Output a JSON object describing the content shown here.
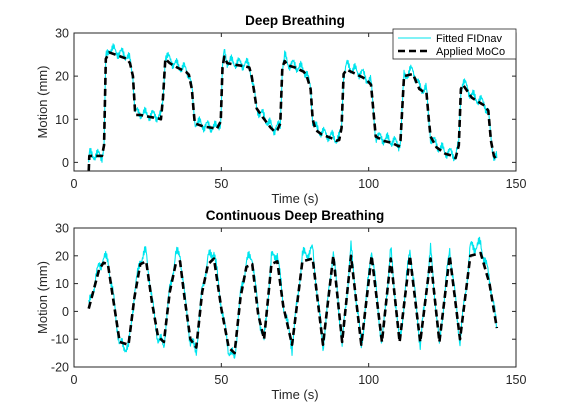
{
  "colors": {
    "fitted": "#00e5ee",
    "applied": "#000000",
    "axis": "#262626"
  },
  "chart_data": [
    {
      "type": "line",
      "title": "Deep Breathing",
      "xlabel": "Time (s)",
      "ylabel": "Motion (mm)",
      "xlim": [
        0,
        150
      ],
      "ylim": [
        -2,
        30
      ],
      "xticks": [
        0,
        50,
        100,
        150
      ],
      "yticks": [
        0,
        10,
        20,
        30
      ],
      "legend": {
        "position": "top-right",
        "entries": [
          "Fitted FIDnav",
          "Applied MoCo"
        ]
      },
      "series": [
        {
          "name": "Fitted FIDnav",
          "style": "solid",
          "noise": 1.0,
          "x": [
            5,
            5.2,
            9.5,
            10.2,
            10.8,
            12,
            14,
            16,
            18,
            19,
            20,
            20.7,
            21,
            22.5,
            24,
            26,
            28.5,
            29.5,
            30.2,
            31,
            32.5,
            35,
            38,
            39,
            40,
            40.6,
            41,
            42,
            44,
            47,
            48.5,
            49.8,
            50.4,
            51,
            52,
            55,
            58,
            59.5,
            60.3,
            61,
            62,
            64,
            66.8,
            68,
            69,
            70,
            70.7,
            71.5,
            72.5,
            75,
            78,
            79,
            80.3,
            81,
            82,
            84,
            87.8,
            89,
            90,
            90.8,
            91.5,
            92.5,
            95,
            98,
            99.5,
            100.8,
            101.6,
            102.4,
            105,
            108,
            109.4,
            110.2,
            110.8,
            112,
            115,
            117.2,
            118.4,
            119.6,
            120.4,
            121,
            123,
            126,
            128.5,
            129.5,
            130.6,
            131.3,
            132,
            135,
            138.5,
            139.3,
            140,
            140.6,
            141.5,
            142.5,
            143.5
          ],
          "y": [
            0,
            1.8,
            1.6,
            4,
            24,
            26.5,
            25.8,
            25.3,
            24.8,
            23.5,
            20,
            12,
            11.5,
            11.5,
            11.2,
            11,
            10.8,
            10.5,
            15,
            24.8,
            23.8,
            22.5,
            21.5,
            20.8,
            17,
            12,
            9.5,
            9.2,
            8.6,
            8.2,
            8,
            9.5,
            22,
            25.5,
            23.5,
            23.1,
            22.8,
            22.5,
            20,
            17,
            12.5,
            11,
            8.5,
            7.8,
            8,
            9,
            22,
            24.5,
            23,
            22.5,
            21.5,
            20.5,
            17,
            10,
            8,
            7,
            5.9,
            5.5,
            5.6,
            8,
            20.5,
            22.5,
            21.5,
            20.5,
            19.5,
            18.5,
            12,
            6,
            5.5,
            5,
            4.5,
            4.2,
            5,
            20,
            21.5,
            17.5,
            17,
            16.8,
            10,
            6,
            4,
            2.5,
            2,
            1.5,
            4,
            17,
            18.8,
            15.5,
            14,
            13.7,
            12.5,
            12,
            5,
            1.5,
            1
          ]
        },
        {
          "name": "Applied MoCo",
          "style": "dashed",
          "noise": 0,
          "x": [
            5,
            5.2,
            9.5,
            10.2,
            10.8,
            12,
            14,
            16,
            18,
            19,
            20,
            20.7,
            21,
            22.5,
            24,
            26,
            28.5,
            29.5,
            30.2,
            31,
            32.5,
            35,
            38,
            39,
            40,
            40.6,
            41,
            42,
            44,
            47,
            48.5,
            49.8,
            50.4,
            51,
            52,
            55,
            58,
            59.5,
            60.3,
            61,
            62,
            64,
            66.8,
            68,
            69,
            70,
            70.7,
            71.5,
            72.5,
            75,
            78,
            79,
            80.3,
            81,
            82,
            84,
            87.8,
            89,
            90,
            90.8,
            91.5,
            92.5,
            95,
            98,
            99.5,
            100.8,
            101.6,
            102.4,
            105,
            108,
            109.4,
            110.2,
            110.8,
            112,
            115,
            117.2,
            118.4,
            119.6,
            120.4,
            121,
            123,
            126,
            128.5,
            129.5,
            130.6,
            131.3,
            132,
            135,
            138.5,
            139.3,
            140,
            140.6,
            141.5,
            142.5,
            143.5
          ],
          "y": [
            -2,
            1.5,
            1.5,
            4,
            24,
            25.5,
            25,
            24.5,
            24,
            23,
            20,
            12,
            11,
            11,
            10.8,
            10.5,
            10.2,
            10,
            15,
            24,
            23,
            22,
            21,
            20.3,
            17,
            12,
            9,
            8.8,
            8.3,
            8,
            7.8,
            9.5,
            22,
            24.5,
            23,
            22.6,
            22.3,
            22,
            20,
            17,
            12.5,
            10.5,
            8,
            7.2,
            7.5,
            9,
            22,
            23.5,
            22.5,
            22,
            21,
            20,
            17,
            10,
            7.5,
            6.5,
            5.5,
            5,
            5.2,
            8,
            20.5,
            21.5,
            20.7,
            19.7,
            19,
            18,
            12,
            6,
            5,
            4.5,
            4,
            3.7,
            5,
            20,
            20.5,
            17,
            16.5,
            16.3,
            10,
            6,
            3.5,
            2,
            1.5,
            1,
            4,
            17,
            18,
            15,
            13.5,
            13.2,
            12.5,
            12,
            5,
            1.5,
            0.5
          ]
        }
      ]
    },
    {
      "type": "line",
      "title": "Continuous Deep Breathing",
      "xlabel": "Time (s)",
      "ylabel": "Motion (mm)",
      "xlim": [
        0,
        150
      ],
      "ylim": [
        -20,
        30
      ],
      "xticks": [
        0,
        50,
        100,
        150
      ],
      "yticks": [
        -20,
        -10,
        0,
        10,
        20,
        30
      ],
      "series": [
        {
          "name": "Fitted FIDnav",
          "style": "solid",
          "noise": 1.8,
          "x": [
            5,
            6.5,
            8.5,
            10,
            11.5,
            13.5,
            15.5,
            18.5,
            20.5,
            22.5,
            24.5,
            26.5,
            28.5,
            30.5,
            32.5,
            34.5,
            36,
            37.5,
            39.5,
            41.5,
            43.5,
            45.5,
            47.5,
            50,
            52.5,
            54.5,
            56.5,
            58.5,
            60.5,
            62.5,
            64.5,
            67,
            69,
            71,
            74,
            77.5,
            81,
            84.5,
            88,
            91,
            94,
            97.5,
            101,
            104.5,
            107.5,
            110.5,
            114,
            117.5,
            121,
            124,
            127.5,
            131,
            134.5,
            138,
            141,
            143.5
          ],
          "y": [
            1.5,
            8,
            16.5,
            19,
            18.5,
            4,
            -12,
            -13,
            6,
            19,
            21,
            4,
            -10,
            -12,
            8,
            20,
            21,
            6,
            -11,
            -14,
            8,
            19,
            22,
            2,
            -14,
            -17,
            6,
            18,
            20,
            0,
            -11,
            19,
            21,
            3,
            -13,
            20,
            22,
            -13,
            22,
            -12,
            23,
            -13,
            23,
            -12,
            22,
            -12,
            23,
            -12,
            22,
            -12,
            23,
            -11,
            23,
            24,
            12,
            -6
          ]
        },
        {
          "name": "Applied MoCo",
          "style": "dashed",
          "noise": 0,
          "x": [
            5,
            6.5,
            8.5,
            10,
            11.5,
            13.5,
            15.5,
            18.5,
            20.5,
            22.5,
            24.5,
            26.5,
            28.5,
            30.5,
            32.5,
            34.5,
            36,
            37.5,
            39.5,
            41.5,
            43.5,
            45.5,
            47.5,
            50,
            52.5,
            54.5,
            56.5,
            58.5,
            60.5,
            62.5,
            64.5,
            67,
            69,
            71,
            74,
            77.5,
            81,
            84.5,
            88,
            91,
            94,
            97.5,
            101,
            104.5,
            107.5,
            110.5,
            114,
            117.5,
            121,
            124,
            127.5,
            131,
            134.5,
            138,
            141,
            143.5
          ],
          "y": [
            1,
            7,
            15,
            17.5,
            17,
            3,
            -11,
            -12,
            5,
            17,
            18,
            3,
            -9,
            -11,
            7,
            17,
            18,
            5,
            -10,
            -13,
            7,
            17,
            19,
            1,
            -13,
            -15,
            5,
            16,
            17,
            -1,
            -10,
            17,
            18,
            2,
            -12,
            18,
            19,
            -12,
            20,
            -11,
            20,
            -12,
            20,
            -11,
            19,
            -11,
            20,
            -11,
            19,
            -11,
            20,
            -10,
            20,
            21,
            10,
            -6
          ]
        }
      ]
    }
  ]
}
